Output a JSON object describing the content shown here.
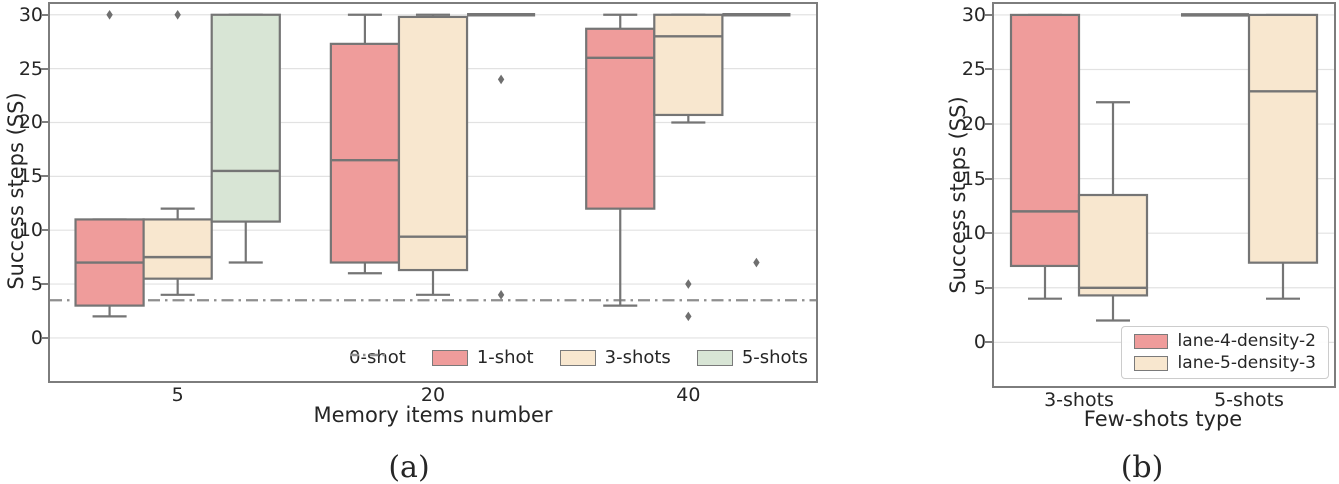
{
  "figure": {
    "captions": {
      "a": "(a)",
      "b": "(b)"
    }
  },
  "colors": {
    "box_edge": "#757575",
    "grid": "#e2e2e2",
    "spine": "#7d7d7d",
    "reference": "#8f8f8f",
    "outlier": "#6f6f6f",
    "text": "#262626",
    "legend_border": "#cccccc",
    "red": "#ef9c9b",
    "beige": "#f8e7cf",
    "green": "#d8e5d5"
  },
  "chart_data": [
    {
      "type": "boxplot",
      "id": "a",
      "xlabel": "Memory items number",
      "ylabel": "Success steps (SS)",
      "categories": [
        "5",
        "20",
        "40"
      ],
      "yticks": [
        0,
        5,
        10,
        15,
        20,
        25,
        30
      ],
      "ylim": [
        -4,
        31
      ],
      "grid": "horizontal",
      "legend_position": "lower-right-inside-frameless",
      "legend": [
        "0-shot",
        "1-shot",
        "3-shots",
        "5-shots"
      ],
      "reference_line": {
        "label": "0-shot",
        "value": 3.5,
        "style": "dashdot"
      },
      "series": [
        {
          "name": "1-shot",
          "color": "#ef9c9b",
          "boxes": [
            {
              "low": 2,
              "q1": 3,
              "median": 7,
              "q3": 11,
              "high": 11,
              "outliers": [
                30
              ]
            },
            {
              "low": 6,
              "q1": 7,
              "median": 16.5,
              "q3": 27.3,
              "high": 30,
              "outliers": []
            },
            {
              "low": 3,
              "q1": 12,
              "median": 26,
              "q3": 28.7,
              "high": 30,
              "outliers": []
            }
          ]
        },
        {
          "name": "3-shots",
          "color": "#f8e7cf",
          "boxes": [
            {
              "low": 4,
              "q1": 5.5,
              "median": 7.5,
              "q3": 11,
              "high": 12,
              "outliers": [
                30
              ]
            },
            {
              "low": 4,
              "q1": 6.3,
              "median": 9.4,
              "q3": 29.8,
              "high": 30,
              "outliers": []
            },
            {
              "low": 20,
              "q1": 20.7,
              "median": 28,
              "q3": 30,
              "high": 30,
              "outliers": [
                5,
                2
              ]
            }
          ]
        },
        {
          "name": "5-shots",
          "color": "#d8e5d5",
          "boxes": [
            {
              "low": 7,
              "q1": 10.8,
              "median": 15.5,
              "q3": 30,
              "high": 30,
              "outliers": []
            },
            {
              "low": 30,
              "q1": 30,
              "median": 30,
              "q3": 30,
              "high": 30,
              "outliers": [
                24,
                4
              ]
            },
            {
              "low": 30,
              "q1": 30,
              "median": 30,
              "q3": 30,
              "high": 30,
              "outliers": [
                7
              ]
            }
          ]
        }
      ]
    },
    {
      "type": "boxplot",
      "id": "b",
      "xlabel": "Few-shots type",
      "ylabel": "Success steps (SS)",
      "categories": [
        "3-shots",
        "5-shots"
      ],
      "yticks": [
        0,
        5,
        10,
        15,
        20,
        25,
        30
      ],
      "ylim": [
        -4,
        31
      ],
      "grid": "horizontal",
      "legend_position": "lower-right-inside-framed",
      "legend": [
        "lane-4-density-2",
        "lane-5-density-3"
      ],
      "series": [
        {
          "name": "lane-4-density-2",
          "color": "#ef9c9b",
          "boxes": [
            {
              "low": 4,
              "q1": 7,
              "median": 12,
              "q3": 30,
              "high": 30,
              "outliers": []
            },
            {
              "low": 30,
              "q1": 30,
              "median": 30,
              "q3": 30,
              "high": 30,
              "outliers": []
            }
          ]
        },
        {
          "name": "lane-5-density-3",
          "color": "#f8e7cf",
          "boxes": [
            {
              "low": 2,
              "q1": 4.3,
              "median": 5,
              "q3": 13.5,
              "high": 22,
              "outliers": []
            },
            {
              "low": 4,
              "q1": 7.3,
              "median": 23,
              "q3": 30,
              "high": 30,
              "outliers": []
            }
          ]
        }
      ]
    }
  ]
}
